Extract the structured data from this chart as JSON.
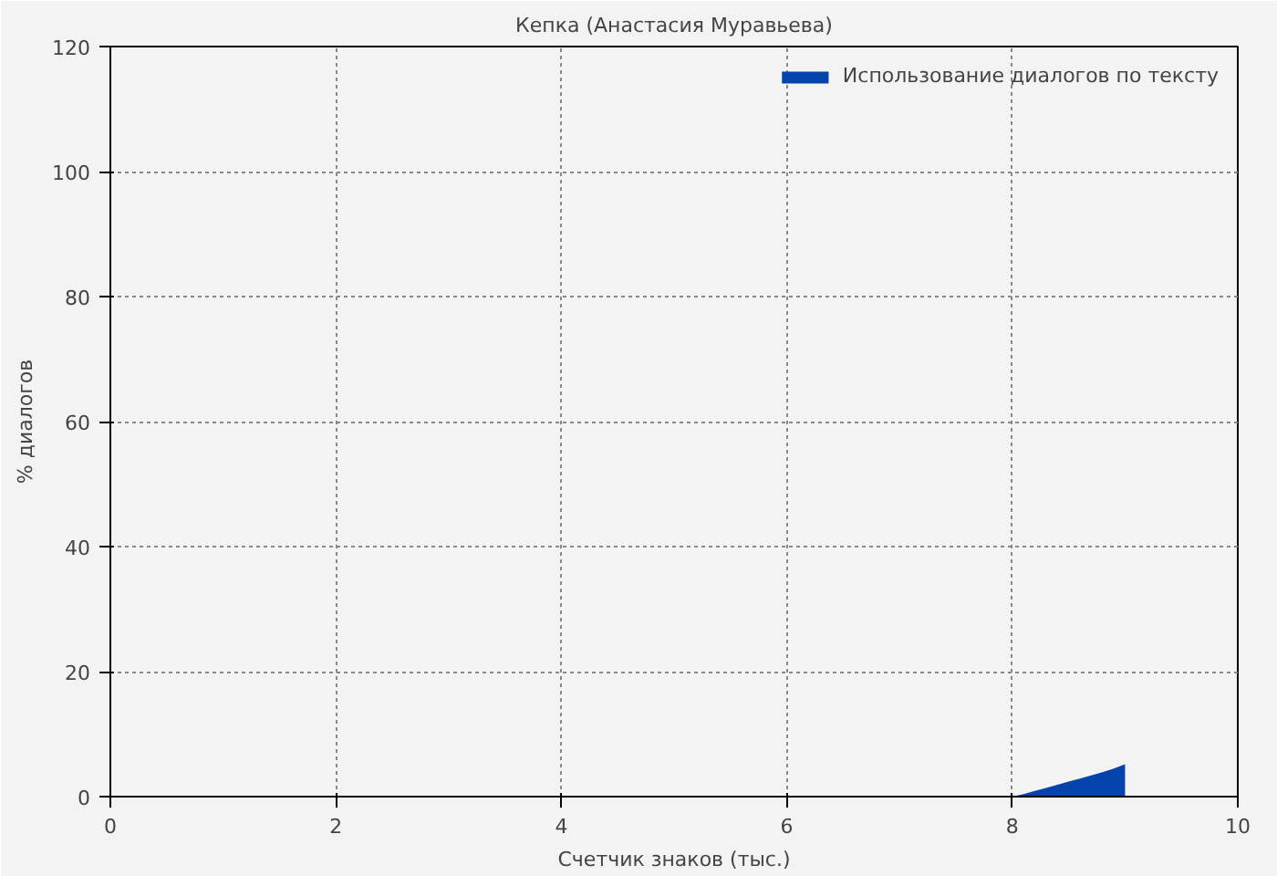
{
  "chart_data": {
    "type": "area",
    "title": "Кепка (Анастасия Муравьева)",
    "xlabel": "Счетчик знаков (тыс.)",
    "ylabel": "% диалогов",
    "x": [
      8.0,
      8.1,
      8.2,
      8.3,
      8.4,
      8.5,
      8.6,
      8.7,
      8.8,
      8.9,
      9.0,
      9.0
    ],
    "series": [
      {
        "name": "Использование диалогов по тексту",
        "color": "#0443ac",
        "values": [
          0,
          0.4,
          0.9,
          1.4,
          1.9,
          2.4,
          2.9,
          3.4,
          3.9,
          4.5,
          5.2,
          0
        ]
      }
    ],
    "xlim": [
      0,
      10
    ],
    "ylim": [
      0,
      120
    ],
    "xticks": [
      0,
      2,
      4,
      6,
      8,
      10
    ],
    "yticks": [
      0,
      20,
      40,
      60,
      80,
      100,
      120
    ],
    "grid": true,
    "legend": "top right"
  }
}
